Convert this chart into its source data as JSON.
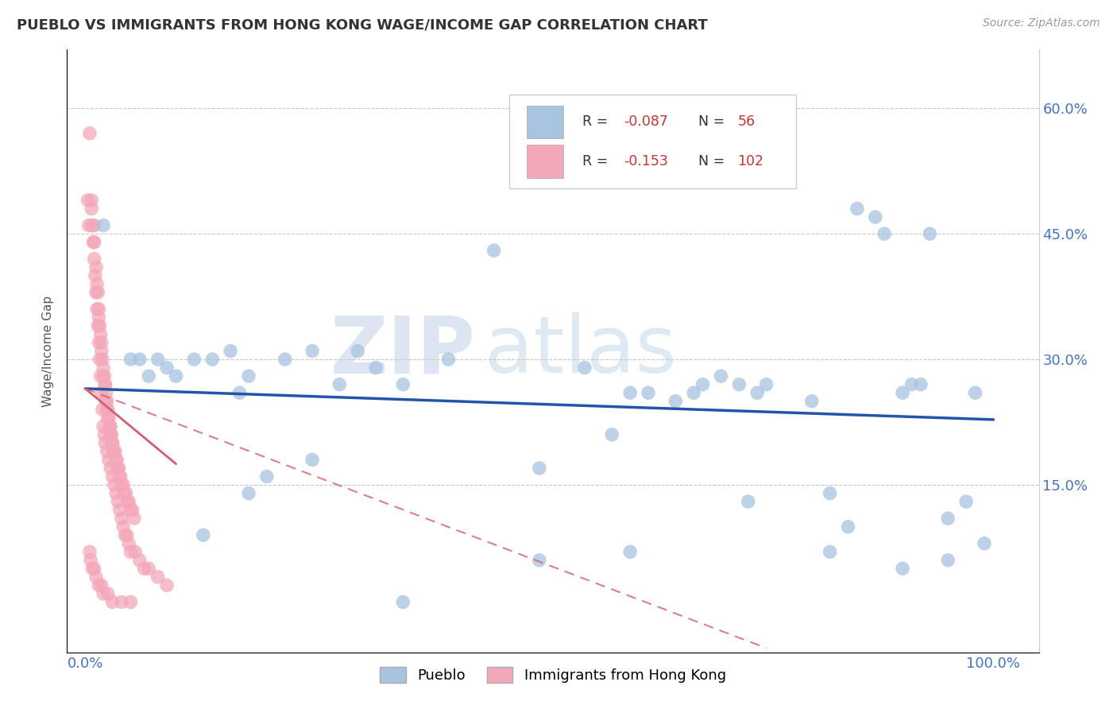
{
  "title": "PUEBLO VS IMMIGRANTS FROM HONG KONG WAGE/INCOME GAP CORRELATION CHART",
  "source": "Source: ZipAtlas.com",
  "ylabel": "Wage/Income Gap",
  "xlim": [
    -0.02,
    1.05
  ],
  "ylim": [
    -0.05,
    0.67
  ],
  "blue_color": "#a8c4e0",
  "pink_color": "#f4a7b9",
  "blue_line_color": "#2255aa",
  "pink_line_color": "#d06070",
  "watermark_zip": "ZIP",
  "watermark_atlas": "atlas",
  "blue_scatter": [
    [
      0.02,
      0.46
    ],
    [
      0.05,
      0.3
    ],
    [
      0.06,
      0.3
    ],
    [
      0.07,
      0.28
    ],
    [
      0.08,
      0.3
    ],
    [
      0.09,
      0.29
    ],
    [
      0.1,
      0.28
    ],
    [
      0.12,
      0.3
    ],
    [
      0.14,
      0.3
    ],
    [
      0.16,
      0.31
    ],
    [
      0.17,
      0.26
    ],
    [
      0.18,
      0.28
    ],
    [
      0.22,
      0.3
    ],
    [
      0.25,
      0.31
    ],
    [
      0.28,
      0.27
    ],
    [
      0.3,
      0.31
    ],
    [
      0.32,
      0.29
    ],
    [
      0.35,
      0.27
    ],
    [
      0.4,
      0.3
    ],
    [
      0.45,
      0.43
    ],
    [
      0.5,
      0.17
    ],
    [
      0.55,
      0.29
    ],
    [
      0.58,
      0.21
    ],
    [
      0.6,
      0.26
    ],
    [
      0.62,
      0.26
    ],
    [
      0.65,
      0.25
    ],
    [
      0.67,
      0.26
    ],
    [
      0.68,
      0.27
    ],
    [
      0.7,
      0.28
    ],
    [
      0.72,
      0.27
    ],
    [
      0.73,
      0.13
    ],
    [
      0.74,
      0.26
    ],
    [
      0.75,
      0.27
    ],
    [
      0.8,
      0.25
    ],
    [
      0.82,
      0.14
    ],
    [
      0.84,
      0.1
    ],
    [
      0.85,
      0.48
    ],
    [
      0.87,
      0.47
    ],
    [
      0.88,
      0.45
    ],
    [
      0.9,
      0.26
    ],
    [
      0.91,
      0.27
    ],
    [
      0.92,
      0.27
    ],
    [
      0.93,
      0.45
    ],
    [
      0.95,
      0.11
    ],
    [
      0.97,
      0.13
    ],
    [
      0.98,
      0.26
    ],
    [
      0.99,
      0.08
    ],
    [
      0.13,
      0.09
    ],
    [
      0.18,
      0.14
    ],
    [
      0.2,
      0.16
    ],
    [
      0.25,
      0.18
    ],
    [
      0.6,
      0.07
    ],
    [
      0.82,
      0.07
    ],
    [
      0.9,
      0.05
    ],
    [
      0.95,
      0.06
    ],
    [
      0.35,
      0.01
    ],
    [
      0.5,
      0.06
    ]
  ],
  "pink_scatter": [
    [
      0.005,
      0.57
    ],
    [
      0.007,
      0.49
    ],
    [
      0.01,
      0.46
    ],
    [
      0.01,
      0.44
    ],
    [
      0.012,
      0.41
    ],
    [
      0.013,
      0.39
    ],
    [
      0.014,
      0.38
    ],
    [
      0.015,
      0.36
    ],
    [
      0.015,
      0.35
    ],
    [
      0.016,
      0.34
    ],
    [
      0.017,
      0.33
    ],
    [
      0.018,
      0.32
    ],
    [
      0.018,
      0.31
    ],
    [
      0.019,
      0.3
    ],
    [
      0.02,
      0.29
    ],
    [
      0.02,
      0.28
    ],
    [
      0.021,
      0.28
    ],
    [
      0.022,
      0.27
    ],
    [
      0.022,
      0.27
    ],
    [
      0.023,
      0.26
    ],
    [
      0.023,
      0.25
    ],
    [
      0.024,
      0.25
    ],
    [
      0.024,
      0.24
    ],
    [
      0.025,
      0.24
    ],
    [
      0.025,
      0.23
    ],
    [
      0.026,
      0.23
    ],
    [
      0.027,
      0.22
    ],
    [
      0.028,
      0.22
    ],
    [
      0.028,
      0.21
    ],
    [
      0.029,
      0.21
    ],
    [
      0.03,
      0.2
    ],
    [
      0.03,
      0.2
    ],
    [
      0.031,
      0.19
    ],
    [
      0.032,
      0.19
    ],
    [
      0.033,
      0.19
    ],
    [
      0.034,
      0.18
    ],
    [
      0.035,
      0.18
    ],
    [
      0.036,
      0.17
    ],
    [
      0.037,
      0.17
    ],
    [
      0.038,
      0.16
    ],
    [
      0.039,
      0.16
    ],
    [
      0.04,
      0.15
    ],
    [
      0.042,
      0.15
    ],
    [
      0.043,
      0.14
    ],
    [
      0.045,
      0.14
    ],
    [
      0.047,
      0.13
    ],
    [
      0.048,
      0.13
    ],
    [
      0.05,
      0.12
    ],
    [
      0.052,
      0.12
    ],
    [
      0.054,
      0.11
    ],
    [
      0.007,
      0.48
    ],
    [
      0.008,
      0.46
    ],
    [
      0.009,
      0.44
    ],
    [
      0.01,
      0.42
    ],
    [
      0.011,
      0.4
    ],
    [
      0.012,
      0.38
    ],
    [
      0.013,
      0.36
    ],
    [
      0.014,
      0.34
    ],
    [
      0.015,
      0.32
    ],
    [
      0.016,
      0.3
    ],
    [
      0.017,
      0.28
    ],
    [
      0.018,
      0.26
    ],
    [
      0.019,
      0.24
    ],
    [
      0.02,
      0.22
    ],
    [
      0.021,
      0.21
    ],
    [
      0.022,
      0.2
    ],
    [
      0.024,
      0.19
    ],
    [
      0.026,
      0.18
    ],
    [
      0.028,
      0.17
    ],
    [
      0.03,
      0.16
    ],
    [
      0.032,
      0.15
    ],
    [
      0.034,
      0.14
    ],
    [
      0.036,
      0.13
    ],
    [
      0.038,
      0.12
    ],
    [
      0.04,
      0.11
    ],
    [
      0.042,
      0.1
    ],
    [
      0.044,
      0.09
    ],
    [
      0.046,
      0.09
    ],
    [
      0.048,
      0.08
    ],
    [
      0.05,
      0.07
    ],
    [
      0.055,
      0.07
    ],
    [
      0.06,
      0.06
    ],
    [
      0.065,
      0.05
    ],
    [
      0.07,
      0.05
    ],
    [
      0.08,
      0.04
    ],
    [
      0.09,
      0.03
    ],
    [
      0.003,
      0.49
    ],
    [
      0.004,
      0.46
    ],
    [
      0.005,
      0.07
    ],
    [
      0.006,
      0.06
    ],
    [
      0.008,
      0.05
    ],
    [
      0.01,
      0.05
    ],
    [
      0.012,
      0.04
    ],
    [
      0.015,
      0.03
    ],
    [
      0.018,
      0.03
    ],
    [
      0.02,
      0.02
    ],
    [
      0.025,
      0.02
    ],
    [
      0.03,
      0.01
    ],
    [
      0.04,
      0.01
    ],
    [
      0.05,
      0.01
    ]
  ]
}
